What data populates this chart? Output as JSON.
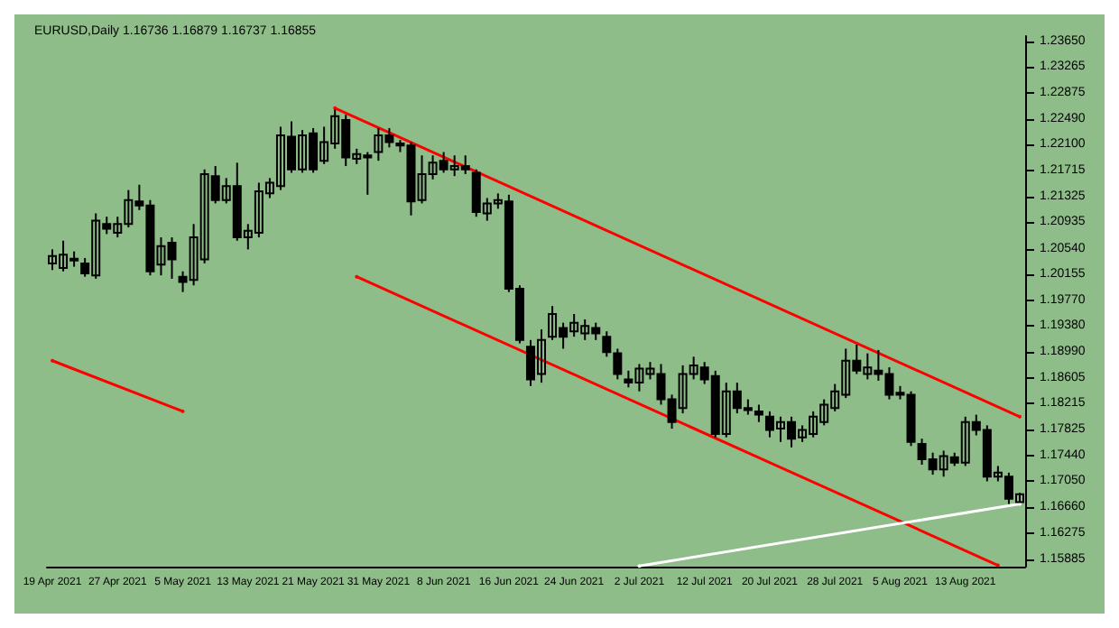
{
  "chart_data": {
    "type": "candlestick",
    "title": "EURUSD,Daily 1.16736 1.16879 1.16737 1.16855",
    "color": "#000000",
    "categories": [
      "19 Apr 2021",
      null,
      null,
      null,
      null,
      null,
      "27 Apr 2021",
      null,
      null,
      null,
      null,
      null,
      "5 May 2021",
      null,
      null,
      null,
      null,
      null,
      "13 May 2021",
      null,
      null,
      null,
      null,
      null,
      "21 May 2021",
      null,
      null,
      null,
      null,
      null,
      "31 May 2021",
      null,
      null,
      null,
      null,
      null,
      "8 Jun 2021",
      null,
      null,
      null,
      null,
      null,
      "16 Jun 2021",
      null,
      null,
      null,
      null,
      null,
      "24 Jun 2021",
      null,
      null,
      null,
      null,
      null,
      "2 Jul 2021",
      null,
      null,
      null,
      null,
      null,
      "12 Jul 2021",
      null,
      null,
      null,
      null,
      null,
      "20 Jul 2021",
      null,
      null,
      null,
      null,
      null,
      "28 Jul 2021",
      null,
      null,
      null,
      null,
      null,
      "5 Aug 2021",
      null,
      null,
      null,
      null,
      null,
      "13 Aug 2021",
      null,
      null,
      null,
      null,
      null
    ],
    "ohlc": [
      [
        1.2032,
        1.2053,
        1.2022,
        1.2043
      ],
      [
        1.2025,
        1.2066,
        1.202,
        1.2045
      ],
      [
        1.2038,
        1.205,
        1.2027,
        1.2039
      ],
      [
        1.2032,
        1.204,
        1.2012,
        1.2017
      ],
      [
        1.2014,
        1.2107,
        1.2009,
        1.2096
      ],
      [
        1.2091,
        1.2102,
        1.2076,
        1.2084
      ],
      [
        1.2078,
        1.2102,
        1.2071,
        1.2091
      ],
      [
        1.2091,
        1.2142,
        1.2086,
        1.2127
      ],
      [
        1.2125,
        1.215,
        1.2112,
        1.2119
      ],
      [
        1.2119,
        1.2127,
        1.2014,
        1.202
      ],
      [
        1.203,
        1.2071,
        1.2014,
        1.2058
      ],
      [
        1.2063,
        1.2071,
        1.2009,
        1.2038
      ],
      [
        1.2012,
        1.202,
        1.1989,
        1.2004
      ],
      [
        1.2007,
        1.2091,
        1.1999,
        1.2071
      ],
      [
        1.2038,
        1.2173,
        1.2032,
        1.2166
      ],
      [
        1.2163,
        1.2178,
        1.2122,
        1.2127
      ],
      [
        1.2127,
        1.216,
        1.2122,
        1.2148
      ],
      [
        1.2148,
        1.2183,
        1.2066,
        1.2071
      ],
      [
        1.2071,
        1.2091,
        1.2053,
        1.2081
      ],
      [
        1.2078,
        1.2153,
        1.2071,
        1.214
      ],
      [
        1.2137,
        1.216,
        1.213,
        1.2153
      ],
      [
        1.2148,
        1.2237,
        1.2142,
        1.2224
      ],
      [
        1.2222,
        1.2245,
        1.2168,
        1.2173
      ],
      [
        1.2173,
        1.2232,
        1.2168,
        1.2224
      ],
      [
        1.2227,
        1.2235,
        1.2168,
        1.2173
      ],
      [
        1.2186,
        1.2237,
        1.2181,
        1.2214
      ],
      [
        1.2212,
        1.2263,
        1.2204,
        1.2253
      ],
      [
        1.2247,
        1.2255,
        1.2178,
        1.2191
      ],
      [
        1.2189,
        1.2204,
        1.2181,
        1.2196
      ],
      [
        1.2194,
        1.2199,
        1.2135,
        1.2191
      ],
      [
        1.2199,
        1.2235,
        1.2186,
        1.2224
      ],
      [
        1.2224,
        1.2235,
        1.2206,
        1.2214
      ],
      [
        1.2212,
        1.2217,
        1.2199,
        1.2209
      ],
      [
        1.2209,
        1.2214,
        1.2104,
        1.2125
      ],
      [
        1.2127,
        1.2194,
        1.2122,
        1.2166
      ],
      [
        1.2166,
        1.2194,
        1.2158,
        1.2183
      ],
      [
        1.2186,
        1.2199,
        1.2168,
        1.2173
      ],
      [
        1.2173,
        1.2194,
        1.2163,
        1.2178
      ],
      [
        1.2178,
        1.2194,
        1.2166,
        1.2173
      ],
      [
        1.2168,
        1.2173,
        1.2102,
        1.2109
      ],
      [
        1.2107,
        1.213,
        1.2096,
        1.2122
      ],
      [
        1.2122,
        1.2137,
        1.2114,
        1.2127
      ],
      [
        1.2125,
        1.2135,
        1.1989,
        1.1994
      ],
      [
        1.1994,
        1.1999,
        1.1912,
        1.1917
      ],
      [
        1.1907,
        1.1917,
        1.1848,
        1.1858
      ],
      [
        1.1866,
        1.1933,
        1.1853,
        1.1917
      ],
      [
        1.1922,
        1.1968,
        1.1917,
        1.1956
      ],
      [
        1.1935,
        1.1943,
        1.1904,
        1.1922
      ],
      [
        1.193,
        1.1956,
        1.1922,
        1.1943
      ],
      [
        1.1927,
        1.1948,
        1.1917,
        1.1938
      ],
      [
        1.1935,
        1.1943,
        1.1917,
        1.1927
      ],
      [
        1.1922,
        1.193,
        1.1892,
        1.1899
      ],
      [
        1.1897,
        1.1904,
        1.1858,
        1.1866
      ],
      [
        1.1858,
        1.1871,
        1.1846,
        1.1853
      ],
      [
        1.1853,
        1.1881,
        1.184,
        1.1874
      ],
      [
        1.1866,
        1.1884,
        1.1858,
        1.1874
      ],
      [
        1.1866,
        1.1881,
        1.182,
        1.1828
      ],
      [
        1.1828,
        1.1835,
        1.1784,
        1.1794
      ],
      [
        1.1815,
        1.1879,
        1.1807,
        1.1866
      ],
      [
        1.1866,
        1.1892,
        1.1858,
        1.1879
      ],
      [
        1.1876,
        1.1884,
        1.1851,
        1.1858
      ],
      [
        1.1863,
        1.1871,
        1.1771,
        1.1776
      ],
      [
        1.1776,
        1.1853,
        1.1771,
        1.184
      ],
      [
        1.184,
        1.1853,
        1.1807,
        1.1815
      ],
      [
        1.1815,
        1.1828,
        1.1805,
        1.1812
      ],
      [
        1.181,
        1.182,
        1.1794,
        1.1805
      ],
      [
        1.1802,
        1.181,
        1.1771,
        1.1782
      ],
      [
        1.1784,
        1.1802,
        1.1764,
        1.1794
      ],
      [
        1.1794,
        1.1802,
        1.1756,
        1.1769
      ],
      [
        1.1771,
        1.1789,
        1.1764,
        1.1782
      ],
      [
        1.1776,
        1.181,
        1.1771,
        1.1802
      ],
      [
        1.1794,
        1.1828,
        1.1789,
        1.182
      ],
      [
        1.1815,
        1.1851,
        1.181,
        1.184
      ],
      [
        1.1835,
        1.1904,
        1.183,
        1.1886
      ],
      [
        1.1886,
        1.191,
        1.1866,
        1.1871
      ],
      [
        1.1866,
        1.1897,
        1.1858,
        1.1876
      ],
      [
        1.1871,
        1.1902,
        1.1856,
        1.1866
      ],
      [
        1.1866,
        1.1876,
        1.1828,
        1.1835
      ],
      [
        1.1838,
        1.1848,
        1.1828,
        1.1835
      ],
      [
        1.1835,
        1.184,
        1.1758,
        1.1764
      ],
      [
        1.1761,
        1.1769,
        1.173,
        1.1738
      ],
      [
        1.1738,
        1.1748,
        1.1715,
        1.1723
      ],
      [
        1.1723,
        1.1751,
        1.1712,
        1.1743
      ],
      [
        1.1741,
        1.1748,
        1.1728,
        1.1733
      ],
      [
        1.1733,
        1.1802,
        1.1728,
        1.1794
      ],
      [
        1.1794,
        1.1805,
        1.1774,
        1.1782
      ],
      [
        1.1782,
        1.1789,
        1.1705,
        1.1712
      ],
      [
        1.1712,
        1.1728,
        1.1705,
        1.1718
      ],
      [
        1.1712,
        1.1718,
        1.1671,
        1.1679
      ],
      [
        1.16737,
        1.16879,
        1.16737,
        1.16855
      ]
    ],
    "series": [
      {
        "type": "line",
        "color": "#ff0000",
        "values": [
          null,
          null,
          null,
          null,
          null,
          null,
          null,
          null,
          null,
          null,
          null,
          null,
          null,
          null,
          null,
          null,
          null,
          null,
          null,
          null,
          null,
          null,
          null,
          null,
          null,
          null,
          1.2265,
          null,
          null,
          null,
          null,
          null,
          null,
          null,
          null,
          null,
          null,
          null,
          null,
          null,
          null,
          null,
          null,
          null,
          null,
          null,
          null,
          null,
          null,
          null,
          null,
          null,
          null,
          null,
          null,
          null,
          null,
          null,
          null,
          null,
          null,
          null,
          null,
          null,
          null,
          null,
          null,
          null,
          null,
          null,
          null,
          null,
          null,
          null,
          null,
          null,
          null,
          null,
          null,
          null,
          null,
          null,
          null,
          null,
          null,
          null,
          null,
          null,
          null,
          1.1802
        ]
      },
      {
        "type": "line",
        "color": "#ff0000",
        "values": [
          null,
          null,
          null,
          null,
          null,
          null,
          null,
          null,
          null,
          null,
          null,
          null,
          null,
          null,
          null,
          null,
          null,
          null,
          null,
          null,
          null,
          null,
          null,
          null,
          null,
          null,
          null,
          null,
          1.2012,
          null,
          null,
          null,
          null,
          null,
          null,
          null,
          null,
          null,
          null,
          null,
          null,
          null,
          null,
          null,
          null,
          null,
          null,
          null,
          null,
          null,
          null,
          null,
          null,
          null,
          null,
          null,
          null,
          null,
          null,
          null,
          null,
          null,
          null,
          null,
          null,
          null,
          null,
          null,
          null,
          null,
          null,
          null,
          null,
          null,
          null,
          null,
          null,
          null,
          null,
          null,
          null,
          null,
          null,
          null,
          null,
          null,
          null,
          1.1579,
          null,
          null
        ]
      },
      {
        "type": "line",
        "color": "#ff0000",
        "values": [
          1.1886,
          null,
          null,
          null,
          null,
          null,
          null,
          null,
          null,
          null,
          null,
          null,
          1.181,
          null,
          null,
          null,
          null,
          null,
          null,
          null,
          null,
          null,
          null,
          null,
          null,
          null,
          null,
          null,
          null,
          null,
          null,
          null,
          null,
          null,
          null,
          null,
          null,
          null,
          null,
          null,
          null,
          null,
          null,
          null,
          null,
          null,
          null,
          null,
          null,
          null,
          null,
          null,
          null,
          null,
          null,
          null,
          null,
          null,
          null,
          null,
          null,
          null,
          null,
          null,
          null,
          null,
          null,
          null,
          null,
          null,
          null,
          null,
          null,
          null,
          null,
          null,
          null,
          null,
          null,
          null,
          null,
          null,
          null,
          null,
          null,
          null,
          null,
          null,
          null,
          null
        ]
      },
      {
        "type": "line",
        "color": "#ffffff",
        "values": [
          null,
          null,
          null,
          null,
          null,
          null,
          null,
          null,
          null,
          null,
          null,
          null,
          null,
          null,
          null,
          null,
          null,
          null,
          null,
          null,
          null,
          null,
          null,
          null,
          null,
          null,
          null,
          null,
          null,
          null,
          null,
          null,
          null,
          null,
          null,
          null,
          null,
          null,
          null,
          null,
          null,
          null,
          null,
          null,
          null,
          null,
          null,
          null,
          null,
          null,
          null,
          null,
          null,
          null,
          1.1578,
          null,
          null,
          null,
          null,
          null,
          null,
          null,
          null,
          null,
          null,
          null,
          null,
          null,
          null,
          null,
          null,
          null,
          null,
          null,
          null,
          null,
          null,
          null,
          null,
          null,
          null,
          null,
          null,
          null,
          null,
          null,
          null,
          null,
          null,
          1.1671
        ]
      }
    ],
    "ylim": [
      1.1577,
      1.2373
    ],
    "yticks": [
      1.15885,
      1.16275,
      {
        "value": 1.1666,
        "label": "1.16660"
      },
      {
        "value": 1.1705,
        "label": "1.17050"
      },
      {
        "value": 1.1744,
        "label": "1.17440"
      },
      1.17825,
      1.18215,
      1.18605,
      {
        "value": 1.1899,
        "label": "1.18990"
      },
      {
        "value": 1.1938,
        "label": "1.19380"
      },
      {
        "value": 1.1977,
        "label": "1.19770"
      },
      1.20155,
      {
        "value": 1.2054,
        "label": "1.20540"
      },
      1.20935,
      1.21325,
      1.21715,
      {
        "value": 1.221,
        "label": "1.22100"
      },
      {
        "value": 1.2249,
        "label": "1.22490"
      },
      1.22875,
      1.23265,
      {
        "value": 1.2365,
        "label": "1.23650"
      }
    ],
    "grid": false
  }
}
